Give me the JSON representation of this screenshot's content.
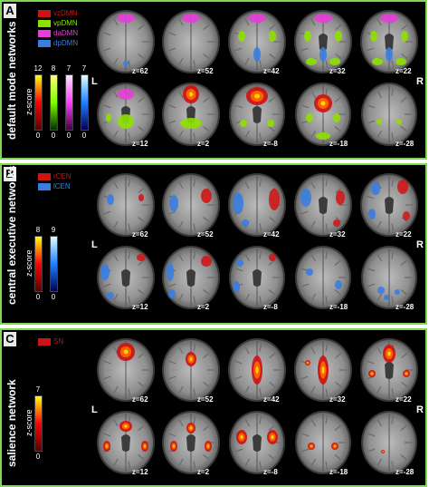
{
  "panels": [
    {
      "letter": "A",
      "title": "default mode networks",
      "legend": [
        {
          "label": "vzDMN",
          "color": "#cc1414"
        },
        {
          "label": "vpDMN",
          "color": "#8ee000"
        },
        {
          "label": "daDMN",
          "color": "#e63ed8"
        },
        {
          "label": "dpDMN",
          "color": "#3a7de0"
        }
      ],
      "colorbars": [
        {
          "max": "12",
          "min": "0",
          "gradient": [
            "#5a0000",
            "#ff0000",
            "#ffff00"
          ]
        },
        {
          "max": "8",
          "min": "0",
          "gradient": [
            "#003000",
            "#80ff00",
            "#ffff80"
          ]
        },
        {
          "max": "7",
          "min": "0",
          "gradient": [
            "#400040",
            "#ff40ff",
            "#ffe0ff"
          ]
        },
        {
          "max": "7",
          "min": "0",
          "gradient": [
            "#000050",
            "#2080ff",
            "#e0ffff"
          ]
        }
      ],
      "zscore_label": "z-score",
      "slices": [
        "z=62",
        "z=52",
        "z=42",
        "z=32",
        "z=22",
        "z=12",
        "z=2",
        "z=-8",
        "z=-18",
        "z=-28"
      ],
      "left_label": "L",
      "right_label": "R"
    },
    {
      "letter": "B",
      "title": "central executive networks",
      "legend": [
        {
          "label": "rCEN",
          "color": "#cc1414"
        },
        {
          "label": "lCEN",
          "color": "#3a7de0"
        }
      ],
      "colorbars": [
        {
          "max": "8",
          "min": "0",
          "gradient": [
            "#5a0000",
            "#ff0000",
            "#ffff00"
          ]
        },
        {
          "max": "9",
          "min": "0",
          "gradient": [
            "#000050",
            "#2080ff",
            "#e0ffff"
          ]
        }
      ],
      "zscore_label": "z-score",
      "slices": [
        "z=62",
        "z=52",
        "z=42",
        "z=32",
        "z=22",
        "z=12",
        "z=2",
        "z=-8",
        "z=-18",
        "z=-28"
      ],
      "left_label": "L",
      "right_label": "R"
    },
    {
      "letter": "C",
      "title": "salience network",
      "legend": [
        {
          "label": "SN",
          "color": "#cc1414"
        }
      ],
      "colorbars": [
        {
          "max": "7",
          "min": "0",
          "gradient": [
            "#5a0000",
            "#ff0000",
            "#ffff00"
          ]
        }
      ],
      "zscore_label": "z-score",
      "slices": [
        "z=62",
        "z=52",
        "z=42",
        "z=32",
        "z=22",
        "z=12",
        "z=2",
        "z=-8",
        "z=-18",
        "z=-28"
      ],
      "left_label": "L",
      "right_label": "R"
    }
  ]
}
